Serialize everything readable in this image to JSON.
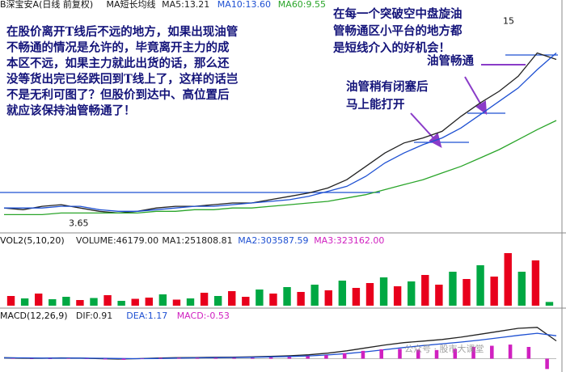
{
  "chart_data": [
    {
      "type": "line",
      "title": "B深宝安A(日线 前复权)",
      "subtitle": "MA短长均线",
      "categories": [
        null,
        null,
        null,
        null,
        null,
        null,
        null,
        null,
        null,
        null,
        null,
        null,
        null,
        null,
        null,
        null,
        null,
        null,
        null,
        null,
        null,
        null,
        null,
        null,
        null,
        null,
        null,
        null,
        null,
        null
      ],
      "ylim": [
        3.0,
        16.0
      ],
      "series": [
        {
          "name": "MA5:13.21",
          "color": "#222222",
          "values": [
            4.3,
            4.2,
            4.4,
            4.5,
            4.3,
            4.1,
            4.0,
            4.1,
            4.3,
            4.4,
            4.4,
            4.5,
            4.6,
            4.6,
            4.8,
            5.0,
            5.2,
            5.5,
            6.0,
            6.8,
            7.6,
            8.2,
            8.5,
            8.9,
            9.8,
            10.6,
            11.3,
            12.2,
            13.6,
            13.21
          ]
        },
        {
          "name": "MA10:13.60",
          "color": "#1e50d2",
          "values": [
            4.3,
            4.3,
            4.3,
            4.4,
            4.4,
            4.2,
            4.1,
            4.1,
            4.2,
            4.3,
            4.4,
            4.4,
            4.5,
            4.6,
            4.7,
            4.8,
            5.0,
            5.3,
            5.6,
            6.2,
            7.0,
            7.6,
            8.1,
            8.5,
            9.1,
            9.9,
            10.7,
            11.5,
            12.6,
            13.6
          ]
        },
        {
          "name": "MA60:9.55",
          "color": "#2aa52a",
          "values": [
            3.9,
            3.9,
            3.9,
            4.0,
            4.0,
            4.0,
            4.0,
            4.0,
            4.1,
            4.1,
            4.2,
            4.2,
            4.3,
            4.3,
            4.4,
            4.5,
            4.6,
            4.7,
            4.9,
            5.1,
            5.4,
            5.7,
            6.0,
            6.4,
            6.8,
            7.3,
            7.8,
            8.4,
            9.0,
            9.55
          ]
        }
      ],
      "price_marks": [
        3.65,
        15.0
      ]
    },
    {
      "type": "bar",
      "title": "VOL2(5,10,20)",
      "ylim": [
        0,
        700000
      ],
      "series": [
        {
          "name": "VOLUME:46179.00",
          "color": "#222222",
          "values": [
            120000,
            90000,
            150000,
            80000,
            110000,
            70000,
            95000,
            130000,
            60000,
            85000,
            100000,
            140000,
            75000,
            90000,
            160000,
            120000,
            180000,
            110000,
            200000,
            150000,
            230000,
            170000,
            260000,
            190000,
            310000,
            220000,
            280000,
            350000,
            240000,
            300000,
            380000,
            260000,
            420000,
            330000,
            500000,
            360000,
            650000,
            420000,
            560000,
            46179
          ],
          "colors": [
            "#e8001c",
            "#00a843",
            "#e8001c",
            "#00a843",
            "#00a843",
            "#e8001c",
            "#00a843",
            "#e8001c",
            "#00a843",
            "#e8001c",
            "#e8001c",
            "#00a843",
            "#e8001c",
            "#00a843",
            "#e8001c",
            "#00a843",
            "#e8001c",
            "#e8001c",
            "#00a843",
            "#e8001c",
            "#00a843",
            "#e8001c",
            "#00a843",
            "#e8001c",
            "#00a843",
            "#e8001c",
            "#e8001c",
            "#00a843",
            "#e8001c",
            "#00a843",
            "#e8001c",
            "#e8001c",
            "#00a843",
            "#e8001c",
            "#00a843",
            "#e8001c",
            "#e8001c",
            "#00a843",
            "#e8001c",
            "#00a843"
          ]
        }
      ],
      "notes": [
        {
          "text": "MA1:251808.81",
          "color": "#222222"
        },
        {
          "text": "MA2:303587.59",
          "color": "#1e50d2"
        },
        {
          "text": "MA3:323162.00",
          "color": "#d020c0"
        }
      ]
    },
    {
      "type": "combo",
      "title": "MACD(12,26,9)",
      "ylim": [
        -0.6,
        1.8
      ],
      "series": [
        {
          "name": "DIF:0.91",
          "color": "#222222",
          "kind": "line",
          "values": [
            0.05,
            0.03,
            0.02,
            0.04,
            0.03,
            0.0,
            -0.02,
            0.0,
            0.03,
            0.05,
            0.06,
            0.07,
            0.08,
            0.09,
            0.12,
            0.15,
            0.2,
            0.28,
            0.4,
            0.55,
            0.7,
            0.82,
            0.9,
            0.98,
            1.1,
            1.25,
            1.4,
            1.55,
            1.6,
            0.91
          ]
        },
        {
          "name": "DEA:1.17",
          "color": "#1e50d2",
          "kind": "line",
          "values": [
            0.04,
            0.04,
            0.03,
            0.03,
            0.03,
            0.02,
            0.01,
            0.0,
            0.01,
            0.03,
            0.04,
            0.05,
            0.06,
            0.07,
            0.09,
            0.11,
            0.14,
            0.19,
            0.26,
            0.35,
            0.46,
            0.57,
            0.67,
            0.76,
            0.85,
            0.95,
            1.07,
            1.19,
            1.3,
            1.17
          ]
        },
        {
          "name": "MACD:-0.53",
          "color": "#d020c0",
          "kind": "bar",
          "values": [
            0.02,
            -0.02,
            -0.02,
            0.02,
            0,
            -0.04,
            -0.06,
            0,
            0.04,
            0.04,
            0.04,
            0.04,
            0.04,
            0.04,
            0.06,
            0.08,
            0.12,
            0.18,
            0.28,
            0.4,
            0.48,
            0.5,
            0.46,
            0.44,
            0.5,
            0.6,
            0.66,
            0.72,
            0.6,
            -0.53
          ]
        }
      ]
    }
  ],
  "annotations": [
    {
      "lines": [
        "在股价离开T线后不远的地方，如果出现油管",
        "不畅通的情况是允许的，毕竟离开主力的成",
        "本区不远，如果主力就此出货的话，那么还",
        "没等货出完已经跌回到T线上了，这样的话岂",
        "不是无利可图了？但股价到达中、高位置后",
        "就应该保持油管畅通了！"
      ]
    },
    {
      "lines": [
        "在每一个突破空中盘旋油",
        "管畅通区小平台的地方都",
        "是短线介入的好机会！"
      ]
    },
    {
      "lines": [
        "油管畅通"
      ]
    },
    {
      "lines": [
        "油管稍有闭塞后",
        "马上能打开"
      ]
    }
  ],
  "watermark": "公众号 · 股市大课堂"
}
